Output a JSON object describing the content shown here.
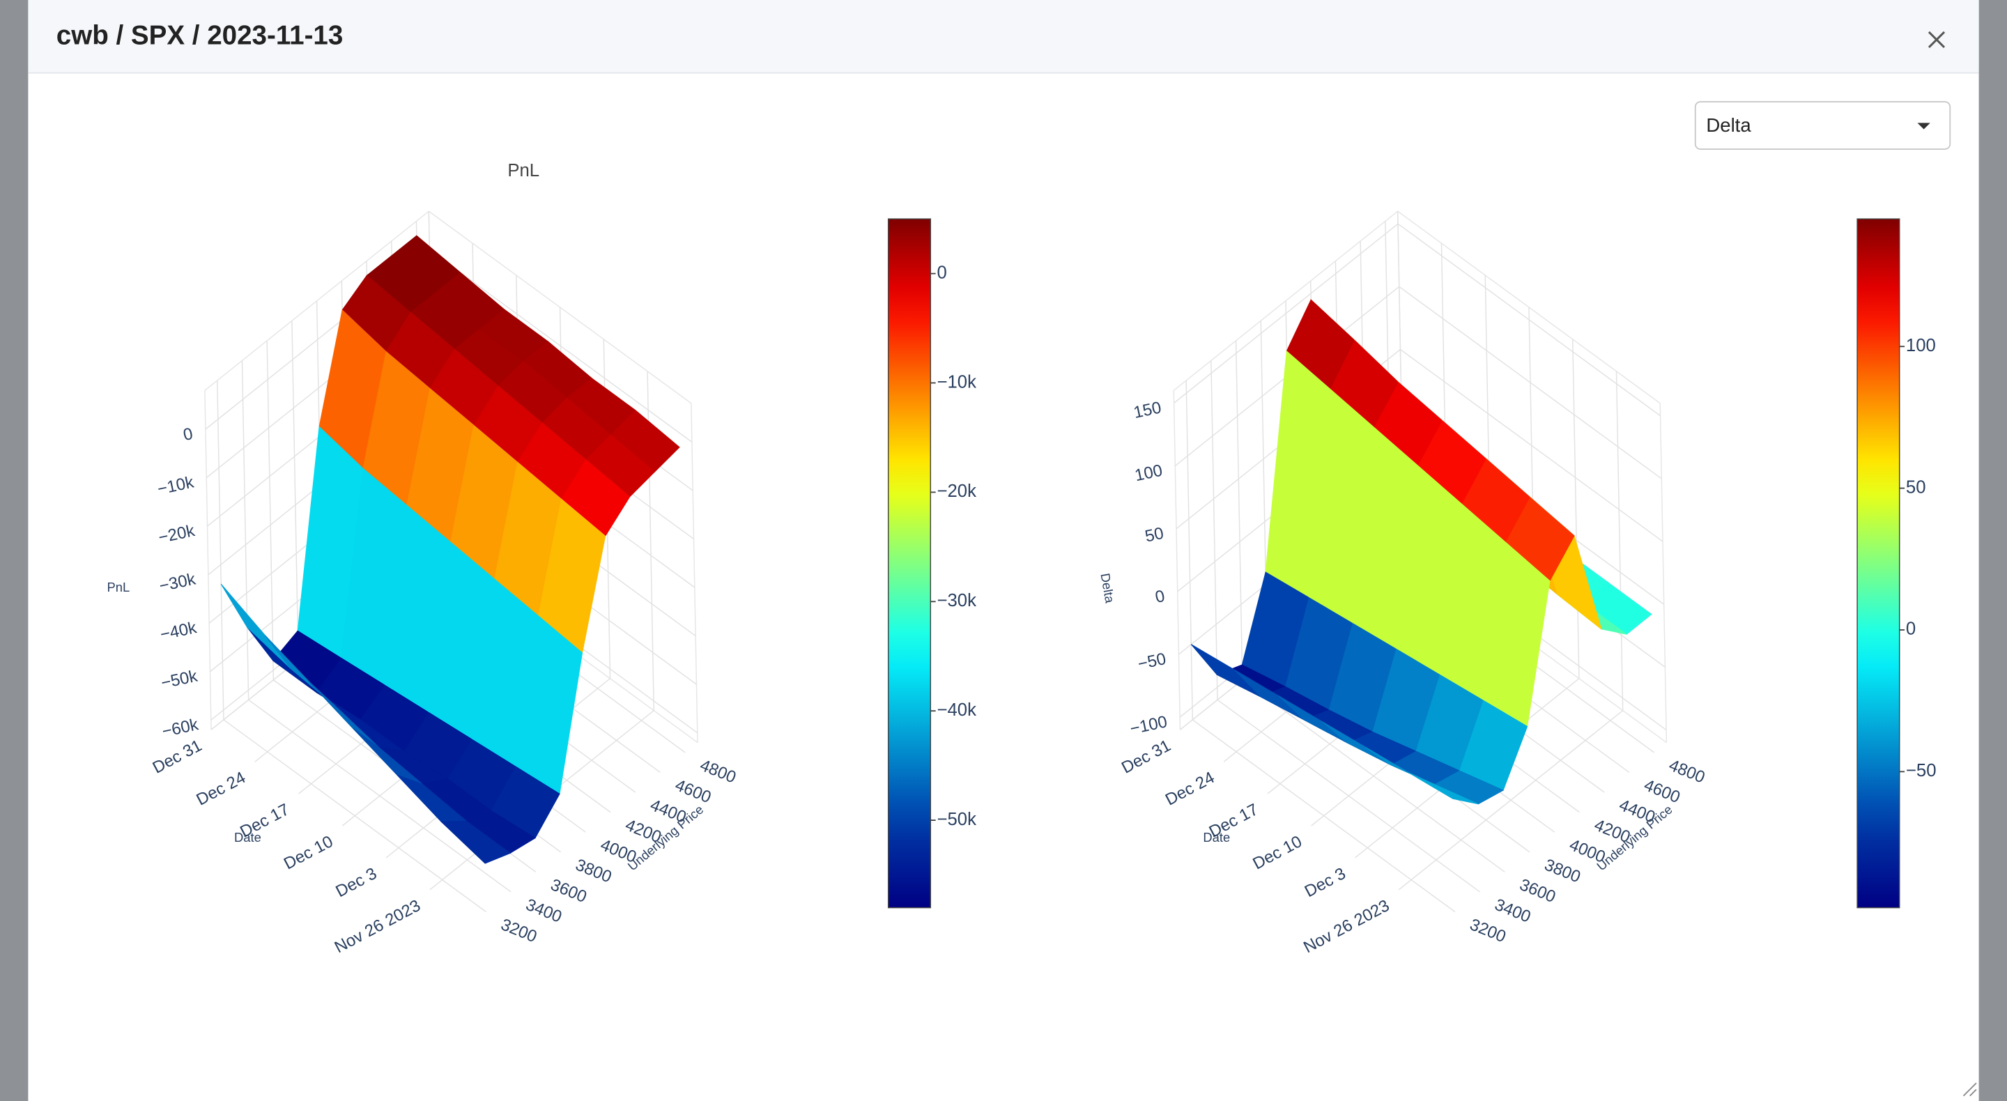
{
  "header": {
    "title": "cwb / SPX / 2023-11-13"
  },
  "dropdown": {
    "selected": "Delta"
  },
  "chart_data": [
    {
      "type": "surface",
      "title": "PnL",
      "xlabel": "Underlying Price",
      "ylabel": "Date",
      "zlabel": "PnL",
      "colorscale": "Jet",
      "x": [
        3200,
        3400,
        3600,
        3800,
        4000,
        4200,
        4400,
        4600,
        4800
      ],
      "y": [
        "2023-11-19",
        "2023-11-26",
        "2023-12-03",
        "2023-12-10",
        "2023-12-17",
        "2023-12-24",
        "2023-12-31"
      ],
      "z": [
        [
          -52000,
          -54000,
          -55000,
          -50000,
          -25000,
          -5000,
          -1000,
          0,
          1000
        ],
        [
          -50000,
          -54000,
          -56000,
          -51000,
          -24000,
          -4000,
          0,
          1000,
          2000
        ],
        [
          -47000,
          -53000,
          -56000,
          -52000,
          -23000,
          -3000,
          1000,
          2000,
          2000
        ],
        [
          -44000,
          -52000,
          -57000,
          -53000,
          -22000,
          -2000,
          2000,
          3000,
          3000
        ],
        [
          -41000,
          -50000,
          -57000,
          -54000,
          -21000,
          -1000,
          3000,
          3000,
          3000
        ],
        [
          -38000,
          -49000,
          -58000,
          -55000,
          -20000,
          0,
          4000,
          4000,
          4000
        ],
        [
          -34000,
          -47000,
          -58000,
          -56000,
          -18000,
          2000,
          5000,
          5000,
          5000
        ]
      ],
      "xlim": [
        3100,
        4900
      ],
      "ylim": [
        "2023-11-19",
        "2023-12-31"
      ],
      "zlim": [
        -62000,
        8000
      ],
      "xticks": [
        3200,
        3400,
        3600,
        3800,
        4000,
        4200,
        4400,
        4600,
        4800
      ],
      "yticks": [
        {
          "value": "2023-11-26",
          "label": "Nov 26 2023"
        },
        {
          "value": "2023-12-03",
          "label": "Dec 3"
        },
        {
          "value": "2023-12-10",
          "label": "Dec 10"
        },
        {
          "value": "2023-12-17",
          "label": "Dec 17"
        },
        {
          "value": "2023-12-24",
          "label": "Dec 24"
        },
        {
          "value": "2023-12-31",
          "label": "Dec 31"
        }
      ],
      "zticks": [
        0,
        {
          "value": -10000,
          "label": "−10k"
        },
        {
          "value": -20000,
          "label": "−20k"
        },
        {
          "value": -30000,
          "label": "−30k"
        },
        {
          "value": -40000,
          "label": "−40k"
        },
        {
          "value": -50000,
          "label": "−50k"
        },
        {
          "value": -60000,
          "label": "−60k"
        }
      ],
      "colorbar_ticks": [
        0,
        {
          "value": -10000,
          "label": "−10k"
        },
        {
          "value": -20000,
          "label": "−20k"
        },
        {
          "value": -30000,
          "label": "−30k"
        },
        {
          "value": -40000,
          "label": "−40k"
        },
        {
          "value": -50000,
          "label": "−50k"
        }
      ]
    },
    {
      "type": "surface",
      "xlabel": "Underlying Price",
      "ylabel": "Date",
      "zlabel": "Delta",
      "colorscale": "Jet",
      "x": [
        3200,
        3400,
        3600,
        3800,
        4000,
        4200,
        4400,
        4600,
        4800
      ],
      "y": [
        "2023-11-19",
        "2023-11-26",
        "2023-12-03",
        "2023-12-10",
        "2023-12-17",
        "2023-12-24",
        "2023-12-31"
      ],
      "z": [
        [
          -20,
          -40,
          -45,
          -10,
          90,
          110,
          20,
          0,
          0
        ],
        [
          -25,
          -50,
          -55,
          -15,
          95,
          115,
          22,
          0,
          0
        ],
        [
          -30,
          -60,
          -65,
          -20,
          100,
          120,
          25,
          2,
          0
        ],
        [
          -35,
          -68,
          -75,
          -25,
          105,
          125,
          28,
          3,
          0
        ],
        [
          -40,
          -75,
          -83,
          -30,
          110,
          130,
          30,
          4,
          0
        ],
        [
          -45,
          -82,
          -90,
          -35,
          115,
          138,
          32,
          5,
          0
        ],
        [
          -50,
          -90,
          -98,
          -40,
          120,
          145,
          35,
          6,
          0
        ]
      ],
      "xlim": [
        3100,
        4900
      ],
      "ylim": [
        "2023-11-19",
        "2023-12-31"
      ],
      "zlim": [
        -110,
        160
      ],
      "xticks": [
        3200,
        3400,
        3600,
        3800,
        4000,
        4200,
        4400,
        4600,
        4800
      ],
      "yticks": [
        {
          "value": "2023-11-26",
          "label": "Nov 26 2023"
        },
        {
          "value": "2023-12-03",
          "label": "Dec 3"
        },
        {
          "value": "2023-12-10",
          "label": "Dec 10"
        },
        {
          "value": "2023-12-17",
          "label": "Dec 17"
        },
        {
          "value": "2023-12-24",
          "label": "Dec 24"
        },
        {
          "value": "2023-12-31",
          "label": "Dec 31"
        }
      ],
      "zticks": [
        150,
        100,
        50,
        0,
        {
          "value": -50,
          "label": "−50"
        },
        {
          "value": -100,
          "label": "−100"
        }
      ],
      "colorbar_ticks": [
        100,
        50,
        0,
        {
          "value": -50,
          "label": "−50"
        }
      ]
    }
  ]
}
